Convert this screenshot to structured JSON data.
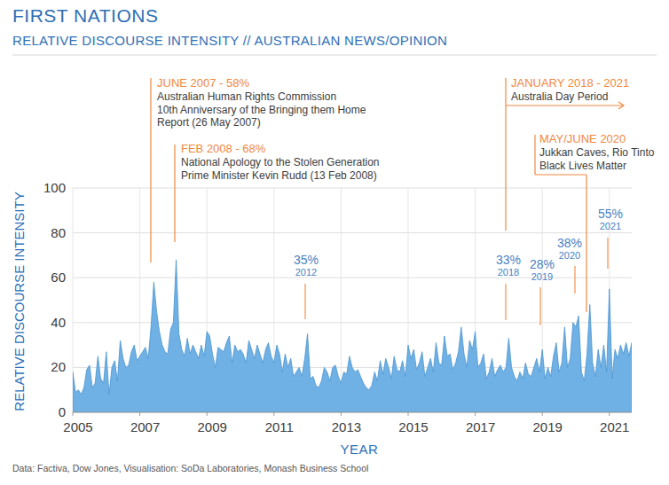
{
  "chart_data": {
    "type": "area",
    "title": "FIRST NATIONS",
    "subtitle": "RELATIVE DISCOURSE INTENSITY // AUSTRALIAN NEWS/OPINION",
    "x_label": "YEAR",
    "y_label": "RELATIVE DISCOURSE INTENSITY",
    "source": "Data: Factiva, Dow Jones, Visualisation: SoDa Laboratories, Monash Business School",
    "color": "#6fb1e4",
    "grid": true,
    "xlim": [
      2005,
      2021.667
    ],
    "xticks": [
      2005,
      2007,
      2009,
      2011,
      2013,
      2015,
      2017,
      2019,
      2021
    ],
    "ylim": [
      0,
      100
    ],
    "yticks": [
      0,
      20,
      40,
      60,
      80,
      100
    ],
    "x": [
      2005,
      2005.083,
      2005.167,
      2005.25,
      2005.333,
      2005.417,
      2005.5,
      2005.583,
      2005.667,
      2005.75,
      2005.833,
      2005.917,
      2006,
      2006.083,
      2006.167,
      2006.25,
      2006.333,
      2006.417,
      2006.5,
      2006.583,
      2006.667,
      2006.75,
      2006.833,
      2006.917,
      2007,
      2007.083,
      2007.167,
      2007.25,
      2007.333,
      2007.417,
      2007.5,
      2007.583,
      2007.667,
      2007.75,
      2007.833,
      2007.917,
      2008,
      2008.083,
      2008.167,
      2008.25,
      2008.333,
      2008.417,
      2008.5,
      2008.583,
      2008.667,
      2008.75,
      2008.833,
      2008.917,
      2009,
      2009.083,
      2009.167,
      2009.25,
      2009.333,
      2009.417,
      2009.5,
      2009.583,
      2009.667,
      2009.75,
      2009.833,
      2009.917,
      2010,
      2010.083,
      2010.167,
      2010.25,
      2010.333,
      2010.417,
      2010.5,
      2010.583,
      2010.667,
      2010.75,
      2010.833,
      2010.917,
      2011,
      2011.083,
      2011.167,
      2011.25,
      2011.333,
      2011.417,
      2011.5,
      2011.583,
      2011.667,
      2011.75,
      2011.833,
      2011.917,
      2012,
      2012.083,
      2012.167,
      2012.25,
      2012.333,
      2012.417,
      2012.5,
      2012.583,
      2012.667,
      2012.75,
      2012.833,
      2012.917,
      2013,
      2013.083,
      2013.167,
      2013.25,
      2013.333,
      2013.417,
      2013.5,
      2013.583,
      2013.667,
      2013.75,
      2013.833,
      2013.917,
      2014,
      2014.083,
      2014.167,
      2014.25,
      2014.333,
      2014.417,
      2014.5,
      2014.583,
      2014.667,
      2014.75,
      2014.833,
      2014.917,
      2015,
      2015.083,
      2015.167,
      2015.25,
      2015.333,
      2015.417,
      2015.5,
      2015.583,
      2015.667,
      2015.75,
      2015.833,
      2015.917,
      2016,
      2016.083,
      2016.167,
      2016.25,
      2016.333,
      2016.417,
      2016.5,
      2016.583,
      2016.667,
      2016.75,
      2016.833,
      2016.917,
      2017,
      2017.083,
      2017.167,
      2017.25,
      2017.333,
      2017.417,
      2017.5,
      2017.583,
      2017.667,
      2017.75,
      2017.833,
      2017.917,
      2018,
      2018.083,
      2018.167,
      2018.25,
      2018.333,
      2018.417,
      2018.5,
      2018.583,
      2018.667,
      2018.75,
      2018.833,
      2018.917,
      2019,
      2019.083,
      2019.167,
      2019.25,
      2019.333,
      2019.417,
      2019.5,
      2019.583,
      2019.667,
      2019.75,
      2019.833,
      2019.917,
      2020,
      2020.083,
      2020.167,
      2020.25,
      2020.333,
      2020.417,
      2020.5,
      2020.583,
      2020.667,
      2020.75,
      2020.833,
      2020.917,
      2021,
      2021.083,
      2021.167,
      2021.25,
      2021.333,
      2021.417,
      2021.5,
      2021.583,
      2021.667
    ],
    "values": [
      18,
      9,
      10,
      8,
      11,
      19,
      21,
      11,
      13,
      25,
      15,
      13,
      27,
      8,
      20,
      23,
      14,
      32,
      24,
      20,
      21,
      27,
      30,
      23,
      25,
      27,
      29,
      24,
      38,
      58,
      45,
      36,
      30,
      27,
      26,
      37,
      40,
      68,
      35,
      28,
      25,
      33,
      26,
      30,
      27,
      24,
      30,
      25,
      36,
      34,
      26,
      20,
      29,
      28,
      27,
      31,
      34,
      22,
      30,
      27,
      28,
      26,
      22,
      32,
      28,
      24,
      30,
      26,
      22,
      28,
      31,
      25,
      22,
      30,
      26,
      18,
      26,
      20,
      24,
      16,
      18,
      20,
      16,
      24,
      35,
      15,
      16,
      12,
      11,
      14,
      20,
      18,
      14,
      20,
      21,
      16,
      13,
      18,
      17,
      25,
      20,
      18,
      19,
      16,
      13,
      11,
      10,
      12,
      18,
      14,
      23,
      17,
      24,
      20,
      15,
      25,
      19,
      18,
      23,
      16,
      30,
      24,
      28,
      19,
      22,
      27,
      16,
      20,
      24,
      18,
      31,
      22,
      21,
      34,
      25,
      26,
      19,
      22,
      27,
      38,
      26,
      20,
      32,
      28,
      36,
      20,
      22,
      26,
      15,
      18,
      24,
      16,
      19,
      21,
      18,
      20,
      33,
      20,
      16,
      14,
      18,
      15,
      22,
      17,
      16,
      20,
      24,
      18,
      28,
      15,
      20,
      16,
      25,
      31,
      18,
      22,
      38,
      20,
      24,
      40,
      38,
      43,
      18,
      14,
      26,
      48,
      22,
      16,
      28,
      20,
      30,
      18,
      55,
      15,
      28,
      24,
      30,
      26,
      31,
      25,
      31
    ],
    "annotations": [
      {
        "title": "JUNE 2007 - 58%",
        "text": [
          "Australian Human Rights Commission",
          "10th Anniversary of the Bringing them Home",
          "Report (26 May 2007)"
        ]
      },
      {
        "title": "FEB 2008 - 68%",
        "text": [
          "National Apology to the Stolen Generation",
          "Prime Minister Kevin Rudd (13 Feb 2008)"
        ]
      },
      {
        "title": "JANUARY 2018 - 2021",
        "text": [
          "Australia Day Period"
        ]
      },
      {
        "title": "MAY/JUNE 2020",
        "text": [
          "Jukkan Caves, Rio Tinto",
          "Black Lives Matter"
        ]
      }
    ],
    "peak_labels": [
      {
        "label": "35%",
        "year": "2012"
      },
      {
        "label": "33%",
        "year": "2018"
      },
      {
        "label": "28%",
        "year": "2019"
      },
      {
        "label": "38%",
        "year": "2020"
      },
      {
        "label": "55%",
        "year": "2021"
      }
    ]
  }
}
